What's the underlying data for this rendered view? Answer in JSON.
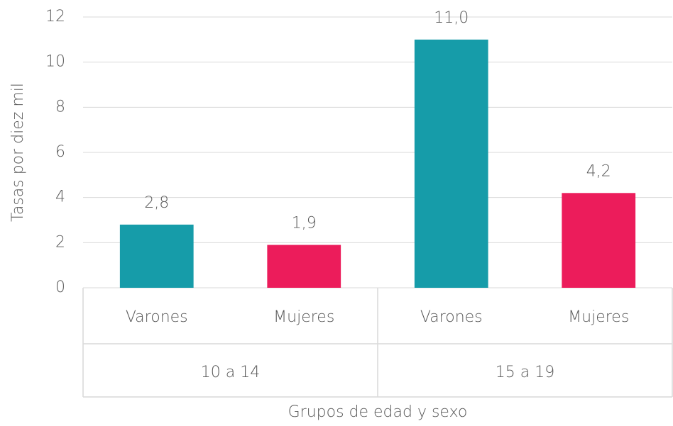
{
  "chart_data": {
    "type": "bar",
    "categories": [
      "Varones",
      "Mujeres",
      "Varones",
      "Mujeres"
    ],
    "groups": [
      "10 a 14",
      "15 a 19"
    ],
    "values": [
      2.8,
      1.9,
      11.0,
      4.2
    ],
    "value_labels": [
      "2,8",
      "1,9",
      "11,0",
      "4,2"
    ],
    "colors": [
      "#169ca9",
      "#ec1c5b",
      "#169ca9",
      "#ec1c5b"
    ],
    "ylim": [
      0,
      12
    ],
    "yticks": [
      0,
      2,
      4,
      6,
      8,
      10,
      12
    ],
    "grid": true,
    "y_label": "Tasas por diez mil",
    "x_label": "Grupos de edad y sexo"
  }
}
